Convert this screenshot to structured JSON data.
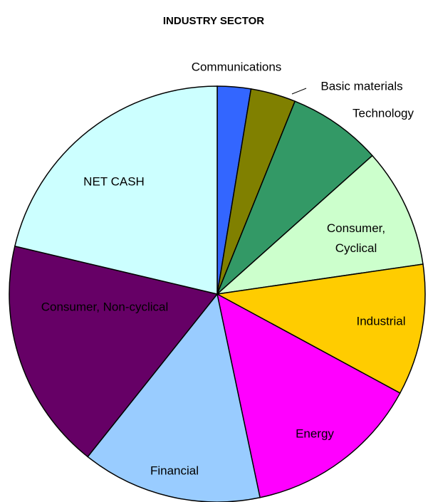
{
  "chart_data": {
    "type": "pie",
    "title": "INDUSTRY SECTOR",
    "categories": [
      "Communications",
      "Basic materials",
      "Technology",
      "Consumer, Cyclical",
      "Industrial",
      "Energy",
      "Financial",
      "Consumer, Non-cyclical",
      "NET CASH"
    ],
    "values": [
      2.6,
      3.5,
      7.3,
      9.3,
      10.2,
      13.8,
      14.0,
      18.0,
      21.3
    ],
    "colors": [
      "#3366ff",
      "#808000",
      "#339966",
      "#ccffcc",
      "#ffcc00",
      "#ff00ff",
      "#99ccff",
      "#660066",
      "#ccffff"
    ]
  }
}
